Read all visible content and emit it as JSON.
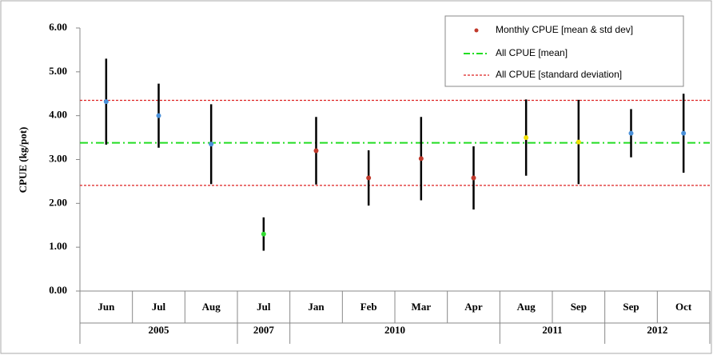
{
  "chart_data": {
    "type": "errorbar",
    "y_label": "CPUE (kg/pot)",
    "categories": [
      "Jun",
      "Jul",
      "Aug",
      "Jul",
      "Jan",
      "Feb",
      "Mar",
      "Apr",
      "Aug",
      "Sep",
      "Sep",
      "Oct"
    ],
    "x_groups": [
      "2005",
      "2005",
      "2005",
      "2007",
      "2010",
      "2010",
      "2010",
      "2010",
      "2011",
      "2011",
      "2012",
      "2012"
    ],
    "ylim": [
      0,
      6
    ],
    "yticks": [
      {
        "value": 0,
        "label": "0.00"
      },
      {
        "value": 1,
        "label": "1.00"
      },
      {
        "value": 2,
        "label": "2.00"
      },
      {
        "value": 3,
        "label": "3.00"
      },
      {
        "value": 4,
        "label": "4.00"
      },
      {
        "value": 5,
        "label": "5.00"
      },
      {
        "value": 6,
        "label": "6.00"
      }
    ],
    "series": [
      {
        "name": "Monthly CPUE [mean & std dev]",
        "legend_color": "#c0392b",
        "colors": [
          "#4a90d9",
          "#4a90d9",
          "#4a90d9",
          "#33dd33",
          "#c0392b",
          "#c0392b",
          "#c0392b",
          "#c0392b",
          "#f0e000",
          "#f0e000",
          "#4a90d9",
          "#4a90d9"
        ],
        "values": [
          4.32,
          4.0,
          3.35,
          1.3,
          3.2,
          2.58,
          3.02,
          2.58,
          3.5,
          3.4,
          3.6,
          3.6
        ],
        "errors": [
          0.98,
          0.73,
          0.91,
          0.38,
          0.77,
          0.63,
          0.95,
          0.72,
          0.87,
          0.96,
          0.55,
          0.9
        ]
      }
    ],
    "mean_line": {
      "name": "All CPUE [mean]",
      "color": "#22dd22",
      "value": 3.38
    },
    "std_lines": {
      "name": "All CPUE [standard deviation]",
      "color": "#dd2222",
      "values": [
        2.41,
        4.35
      ]
    }
  }
}
